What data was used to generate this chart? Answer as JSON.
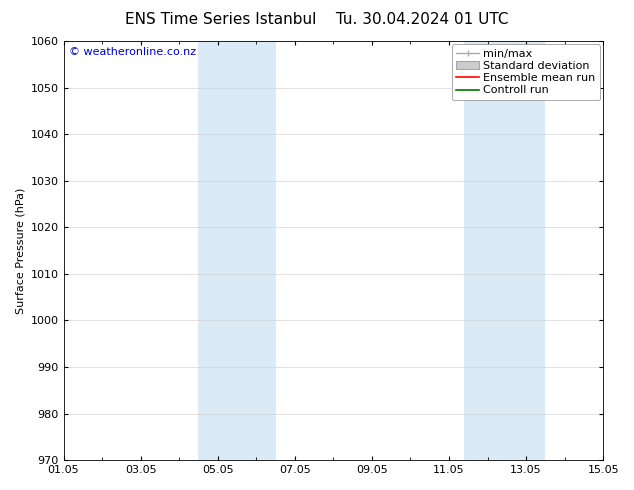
{
  "title_left": "ENS Time Series Istanbul",
  "title_right": "Tu. 30.04.2024 01 UTC",
  "ylabel": "Surface Pressure (hPa)",
  "ylim": [
    970,
    1060
  ],
  "yticks": [
    970,
    980,
    990,
    1000,
    1010,
    1020,
    1030,
    1040,
    1050,
    1060
  ],
  "xtick_labels": [
    "01.05",
    "03.05",
    "05.05",
    "07.05",
    "09.05",
    "11.05",
    "13.05",
    "15.05"
  ],
  "xtick_positions": [
    0,
    2,
    4,
    6,
    8,
    10,
    12,
    14
  ],
  "xlim": [
    0,
    14
  ],
  "shaded_regions": [
    {
      "x_start": 3.5,
      "x_end": 4.6,
      "color": "#daeaf7",
      "alpha": 1.0
    },
    {
      "x_start": 4.6,
      "x_end": 5.5,
      "color": "#daeaf7",
      "alpha": 1.0
    },
    {
      "x_start": 10.4,
      "x_end": 11.2,
      "color": "#daeaf7",
      "alpha": 1.0
    },
    {
      "x_start": 11.2,
      "x_end": 12.5,
      "color": "#daeaf7",
      "alpha": 1.0
    }
  ],
  "legend_items": [
    {
      "label": "min/max",
      "color": "#aaaaaa",
      "type": "line_caps"
    },
    {
      "label": "Standard deviation",
      "color": "#cccccc",
      "type": "rect"
    },
    {
      "label": "Ensemble mean run",
      "color": "#ff0000",
      "type": "line"
    },
    {
      "label": "Controll run",
      "color": "#007700",
      "type": "line"
    }
  ],
  "watermark_text": "© weatheronline.co.nz",
  "watermark_color": "#0000cc",
  "watermark_fontsize": 8,
  "background_color": "#ffffff",
  "plot_bg_color": "#ffffff",
  "grid_color": "#cccccc",
  "title_fontsize": 11,
  "axis_label_fontsize": 8,
  "tick_fontsize": 8,
  "legend_fontsize": 8
}
